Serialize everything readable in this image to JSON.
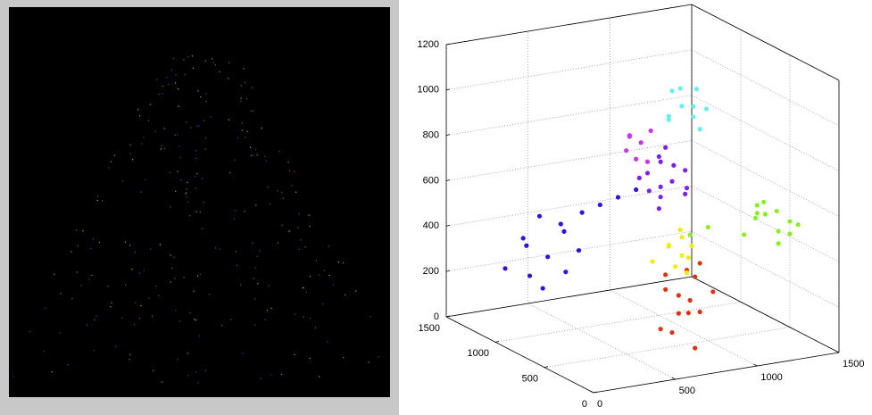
{
  "chart_data": {
    "type": "scatter3d",
    "xlim": [
      0,
      1500
    ],
    "ylim": [
      0,
      1500
    ],
    "zlim": [
      0,
      1200
    ],
    "xticks": [
      0,
      500,
      1000,
      1500
    ],
    "yticks": [
      0,
      500,
      1000,
      1500
    ],
    "zticks": [
      0,
      200,
      400,
      600,
      800,
      1000,
      1200
    ],
    "grid": true,
    "series": [
      {
        "color": "#3311dd",
        "x": [
          300,
          400,
          500,
          550,
          600,
          650,
          450,
          350,
          700,
          500,
          600,
          750,
          800,
          420,
          550
        ],
        "y": [
          1400,
          1350,
          1300,
          1250,
          1300,
          1200,
          1400,
          1300,
          1100,
          1350,
          1150,
          1000,
          900,
          1250,
          1200
        ],
        "z": [
          200,
          300,
          250,
          400,
          350,
          450,
          150,
          350,
          500,
          100,
          300,
          550,
          600,
          450,
          200
        ]
      },
      {
        "color": "#dd3311",
        "x": [
          600,
          650,
          700,
          720,
          760,
          800,
          850,
          680,
          740,
          790,
          620,
          710,
          770,
          830
        ],
        "y": [
          200,
          350,
          300,
          250,
          400,
          300,
          200,
          450,
          150,
          350,
          300,
          100,
          250,
          400
        ],
        "z": [
          150,
          300,
          200,
          400,
          250,
          350,
          300,
          100,
          450,
          180,
          380,
          250,
          50,
          220
        ]
      },
      {
        "color": "#eeee00",
        "x": [
          800,
          850,
          900,
          950,
          820,
          880,
          930,
          780,
          870,
          960
        ],
        "y": [
          500,
          650,
          550,
          700,
          600,
          500,
          650,
          700,
          550,
          600
        ],
        "z": [
          350,
          400,
          300,
          450,
          420,
          380,
          350,
          330,
          460,
          400
        ]
      },
      {
        "color": "#88ee22",
        "x": [
          1100,
          1150,
          1200,
          1250,
          1300,
          1350,
          1280,
          1220,
          1180,
          1320,
          1260,
          1400,
          1000,
          950
        ],
        "y": [
          300,
          250,
          350,
          200,
          300,
          250,
          400,
          150,
          300,
          200,
          350,
          250,
          500,
          600
        ],
        "z": [
          500,
          600,
          550,
          520,
          580,
          540,
          600,
          480,
          620,
          500,
          560,
          520,
          500,
          450
        ]
      },
      {
        "color": "#7722ee",
        "x": [
          850,
          900,
          950,
          1000,
          1050,
          1100,
          920,
          980,
          1030,
          880,
          1070,
          960,
          1010,
          940
        ],
        "y": [
          850,
          950,
          900,
          1000,
          800,
          900,
          850,
          950,
          900,
          1000,
          850,
          800,
          950,
          900
        ],
        "z": [
          600,
          650,
          550,
          700,
          600,
          650,
          720,
          580,
          680,
          620,
          560,
          640,
          750,
          500
        ]
      },
      {
        "color": "#cc33ee",
        "x": [
          800,
          850,
          900,
          950,
          880,
          830,
          920
        ],
        "y": [
          1000,
          1050,
          950,
          1000,
          1100,
          950,
          1050
        ],
        "z": [
          750,
          800,
          700,
          820,
          780,
          720,
          760
        ]
      },
      {
        "color": "#66eeee",
        "x": [
          1000,
          1050,
          1100,
          1150,
          1200,
          1080,
          1130,
          1170,
          1030,
          1120
        ],
        "y": [
          900,
          850,
          950,
          900,
          850,
          1000,
          800,
          900,
          950,
          850
        ],
        "z": [
          900,
          950,
          1000,
          880,
          920,
          980,
          850,
          1000,
          870,
          940
        ]
      }
    ]
  }
}
